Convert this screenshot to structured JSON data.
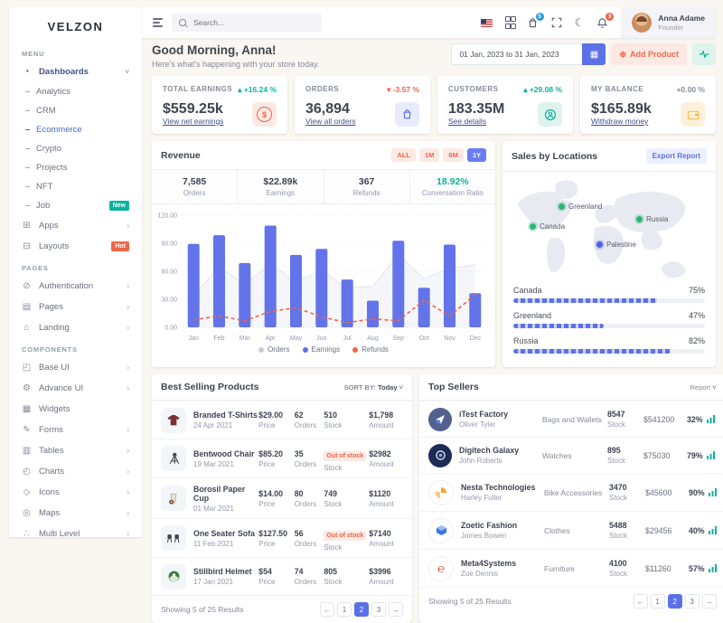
{
  "brand": "VELZON",
  "sidebar": {
    "menu_label": "Menu",
    "pages_label": "Pages",
    "components_label": "Components",
    "dashboards": "Dashboards",
    "dash_sub": [
      "Analytics",
      "CRM",
      "Ecommerce",
      "Crypto",
      "Projects",
      "NFT",
      "Job"
    ],
    "job_badge": "New",
    "apps": "Apps",
    "layouts": "Layouts",
    "layouts_badge": "Hot",
    "pages_items": [
      "Authentication",
      "Pages",
      "Landing"
    ],
    "components_items": [
      "Base UI",
      "Advance UI",
      "Widgets",
      "Forms",
      "Tables",
      "Charts",
      "Icons",
      "Maps",
      "Multi Level"
    ]
  },
  "header": {
    "search_placeholder": "Search...",
    "cart_badge": "5",
    "bell_badge": "3",
    "user": {
      "name": "Anna Adame",
      "role": "Founder"
    }
  },
  "greeting": {
    "title": "Good Morning, Anna!",
    "subtitle": "Here's what's happening with your store today.",
    "date_range": "01 Jan, 2023 to 31 Jan, 2023",
    "add_product": "Add Product"
  },
  "stats": [
    {
      "label": "Total Earnings",
      "change": "+16.24 %",
      "dir": "up",
      "value": "$559.25k",
      "link": "View net earnings",
      "icon": "dollar-circle-icon"
    },
    {
      "label": "Orders",
      "change": "-3.57 %",
      "dir": "down",
      "value": "36,894",
      "link": "View all orders",
      "icon": "shopping-bag-icon"
    },
    {
      "label": "Customers",
      "change": "+29.08 %",
      "dir": "up",
      "value": "183.35M",
      "link": "See details",
      "icon": "user-circle-icon"
    },
    {
      "label": "My Balance",
      "change": "+0.00 %",
      "dir": "flat",
      "value": "$165.89k",
      "link": "Withdraw money",
      "icon": "wallet-icon"
    }
  ],
  "revenue": {
    "title": "Revenue",
    "ranges": [
      "ALL",
      "1M",
      "6M",
      "1Y"
    ],
    "active_range": "1Y",
    "stats": [
      {
        "value": "7,585",
        "label": "Orders"
      },
      {
        "value": "$22.89k",
        "label": "Earnings"
      },
      {
        "value": "367",
        "label": "Refunds"
      },
      {
        "value": "18.92%",
        "label": "Conversation Ratio"
      }
    ]
  },
  "chart_data": {
    "type": "bar",
    "title": "Revenue",
    "categories": [
      "Jan",
      "Feb",
      "Mar",
      "Apr",
      "May",
      "Jun",
      "Jul",
      "Aug",
      "Sep",
      "Oct",
      "Nov",
      "Dec"
    ],
    "series": [
      {
        "name": "Orders",
        "type": "area",
        "color": "#e2e6ee",
        "values": [
          34,
          65,
          46,
          68,
          49,
          61,
          42,
          44,
          78,
          52,
          63,
          67
        ]
      },
      {
        "name": "Earnings",
        "type": "bar",
        "color": "#6373e9",
        "values": [
          89.25,
          98.58,
          68.74,
          108.87,
          77.54,
          84.03,
          51.24,
          28.57,
          92.57,
          42.36,
          88.51,
          36.57
        ]
      },
      {
        "name": "Refunds",
        "type": "line-dashed",
        "color": "#f06548",
        "values": [
          8,
          12,
          7,
          17,
          21,
          11,
          5,
          9,
          7,
          29,
          12,
          35
        ]
      }
    ],
    "ylim": [
      0,
      120
    ],
    "yticks": [
      0,
      30,
      60,
      90,
      120
    ],
    "legend_position": "bottom",
    "grid": true
  },
  "sales": {
    "title": "Sales by Locations",
    "export": "Export Report",
    "markers": [
      {
        "name": "Greenland",
        "color": "green"
      },
      {
        "name": "Russia",
        "color": "green"
      },
      {
        "name": "Canada",
        "color": "green"
      },
      {
        "name": "Palestine",
        "color": "blue"
      }
    ],
    "locations": [
      {
        "name": "Canada",
        "pct": 75,
        "pct_label": "75%"
      },
      {
        "name": "Greenland",
        "pct": 47,
        "pct_label": "47%"
      },
      {
        "name": "Russia",
        "pct": 82,
        "pct_label": "82%"
      }
    ]
  },
  "products": {
    "title": "Best Selling Products",
    "sort_label": "SORT BY:",
    "sort_value": "Today",
    "footer": "Showing 5 of 25 Results",
    "labels": {
      "price": "Price",
      "orders": "Orders",
      "stock": "Stock",
      "amount": "Amount"
    },
    "rows": [
      {
        "name": "Branded T-Shirts",
        "date": "24 Apr 2021",
        "price": "$29.00",
        "orders": "62",
        "stock": "510",
        "amount": "$1,798"
      },
      {
        "name": "Bentwood Chair",
        "date": "19 Mar 2021",
        "price": "$85.20",
        "orders": "35",
        "stock": "Out of stock",
        "amount": "$2982"
      },
      {
        "name": "Borosil Paper Cup",
        "date": "01 Mar 2021",
        "price": "$14.00",
        "orders": "80",
        "stock": "749",
        "amount": "$1120"
      },
      {
        "name": "One Seater Sofa",
        "date": "11 Feb 2021",
        "price": "$127.50",
        "orders": "56",
        "stock": "Out of stock",
        "amount": "$7140"
      },
      {
        "name": "Stillbird Helmet",
        "date": "17 Jan 2021",
        "price": "$54",
        "orders": "74",
        "stock": "805",
        "amount": "$3996"
      }
    ]
  },
  "sellers": {
    "title": "Top Sellers",
    "report": "Report",
    "stock_label": "Stock",
    "footer": "Showing 5 of 25 Results",
    "rows": [
      {
        "name": "iTest Factory",
        "person": "Oliver Tyler",
        "category": "Bags and Wallets",
        "stock": "8547",
        "amount": "$541200",
        "pct": "32%"
      },
      {
        "name": "Digitech Galaxy",
        "person": "John Roberts",
        "category": "Watches",
        "stock": "895",
        "amount": "$75030",
        "pct": "79%"
      },
      {
        "name": "Nesta Technologies",
        "person": "Harley Fuller",
        "category": "Bike Accessories",
        "stock": "3470",
        "amount": "$45600",
        "pct": "90%"
      },
      {
        "name": "Zoetic Fashion",
        "person": "James Bowen",
        "category": "Clothes",
        "stock": "5488",
        "amount": "$29456",
        "pct": "40%"
      },
      {
        "name": "Meta4Systems",
        "person": "Zoe Dennis",
        "category": "Furniture",
        "stock": "4100",
        "amount": "$11260",
        "pct": "57%"
      }
    ]
  },
  "pagination": {
    "prev": "←",
    "pages": [
      "1",
      "2",
      "3"
    ],
    "active": "2",
    "next": "→"
  },
  "colors": {
    "accent_indigo": "#5b71e8",
    "primary": "#405189",
    "success": "#0ab39c",
    "danger": "#f06548",
    "warning": "#f7b84b",
    "background": "#faf6f2"
  }
}
